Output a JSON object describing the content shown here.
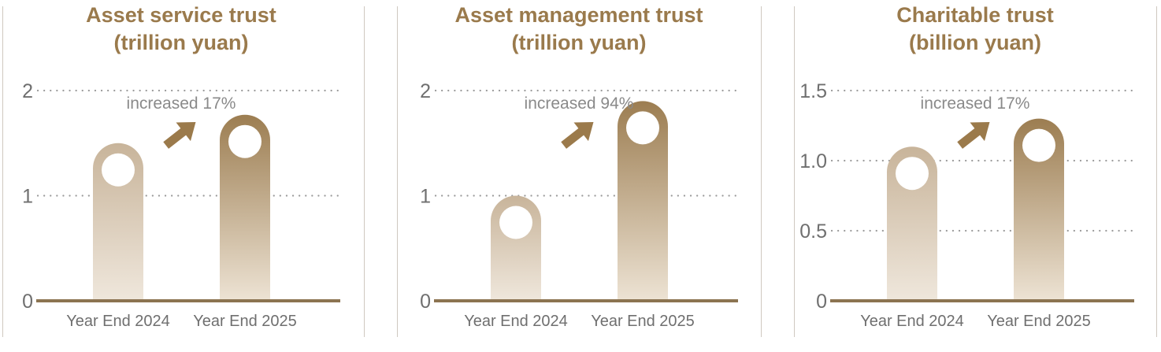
{
  "chart_data": [
    {
      "type": "bar",
      "title": "Asset service trust",
      "subtitle": "(trillion yuan)",
      "categories": [
        "Year End 2024",
        "Year End 2025"
      ],
      "values": [
        1.5,
        1.77
      ],
      "ylim": [
        0,
        2
      ],
      "yticks": [
        "0",
        "1",
        "2"
      ],
      "ytick_values": [
        0,
        1,
        2
      ],
      "annotation": "increased 17%",
      "grid": "dotted"
    },
    {
      "type": "bar",
      "title": "Asset management trust",
      "subtitle": "(trillion yuan)",
      "categories": [
        "Year End 2024",
        "Year End 2025"
      ],
      "values": [
        1.0,
        1.9
      ],
      "ylim": [
        0,
        2
      ],
      "yticks": [
        "0",
        "1",
        "2"
      ],
      "ytick_values": [
        0,
        1,
        2
      ],
      "annotation": "increased 94%",
      "grid": "dotted"
    },
    {
      "type": "bar",
      "title": "Charitable trust",
      "subtitle": "(billion yuan)",
      "categories": [
        "Year End 2024",
        "Year End 2025"
      ],
      "values": [
        1.1,
        1.3
      ],
      "ylim": [
        0,
        1.5
      ],
      "yticks": [
        "0",
        "0.5",
        "1.0",
        "1.5"
      ],
      "ytick_values": [
        0,
        0.5,
        1.0,
        1.5
      ],
      "annotation": "increased 17%",
      "grid": "dotted"
    }
  ],
  "colors": {
    "title": "#9a7a4c",
    "axis": "#8c7451",
    "bar_light_top": "#c8b49a",
    "bar_light_bottom": "#efe7dc",
    "bar_dark_top": "#9c7d51",
    "bar_dark_bottom": "#ede3d4",
    "arrow": "#9b7a4b",
    "grid": "#9a9a9a"
  }
}
